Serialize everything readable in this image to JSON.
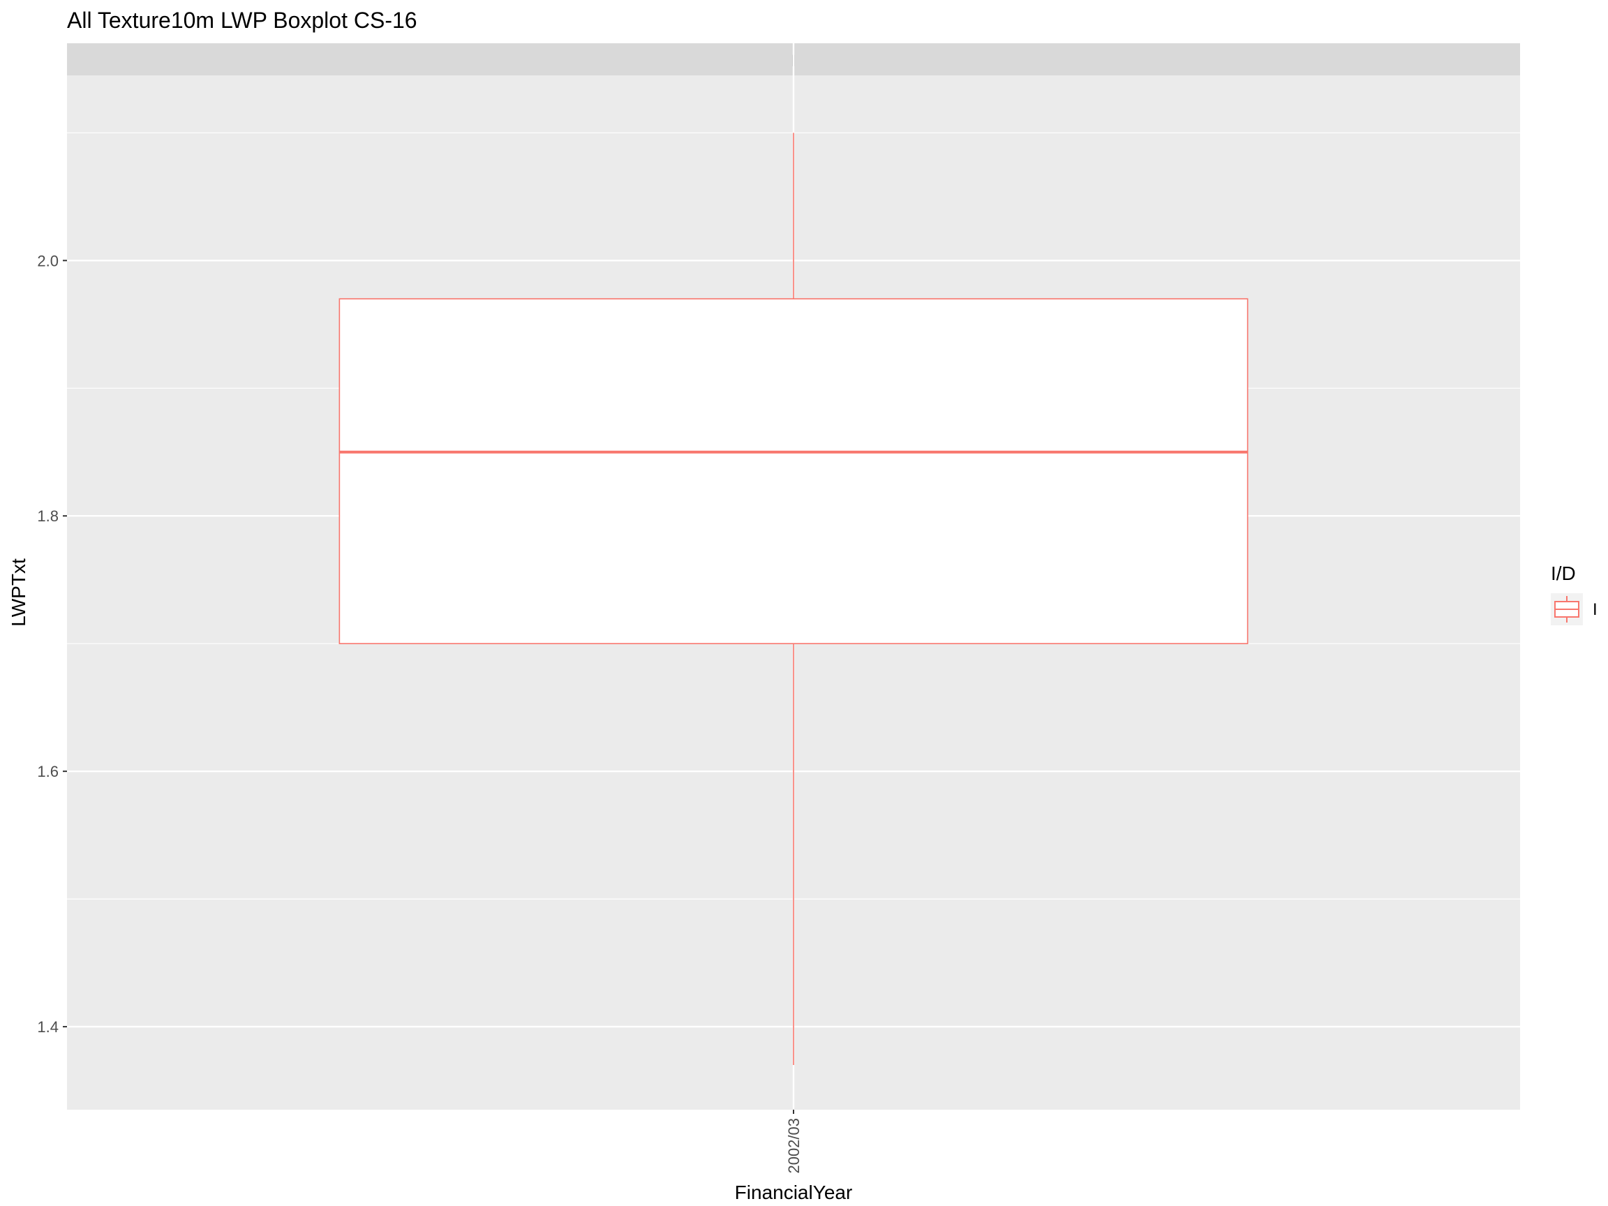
{
  "chart_data": {
    "type": "boxplot",
    "title": "All Texture10m LWP Boxplot CS-16",
    "xlabel": "FinancialYear",
    "ylabel": "LWPTxt",
    "facet_label": "I",
    "categories": [
      "2002/03"
    ],
    "yticks": [
      "1.4",
      "1.6",
      "1.8",
      "2.0"
    ],
    "ylim": [
      1.335,
      2.145
    ],
    "series": [
      {
        "name": "I",
        "boxes": [
          {
            "category": "2002/03",
            "whisker_low": 1.37,
            "q1": 1.7,
            "median": 1.85,
            "q3": 1.97,
            "whisker_high": 2.1
          }
        ]
      }
    ],
    "legend": {
      "title": "I/D",
      "items": [
        "I"
      ],
      "position": "right"
    },
    "colors": {
      "box_line": "#F8766D",
      "panel": "#EBEBEB",
      "strip": "#D9D9D9",
      "grid": "#FFFFFF"
    },
    "grid": true
  }
}
